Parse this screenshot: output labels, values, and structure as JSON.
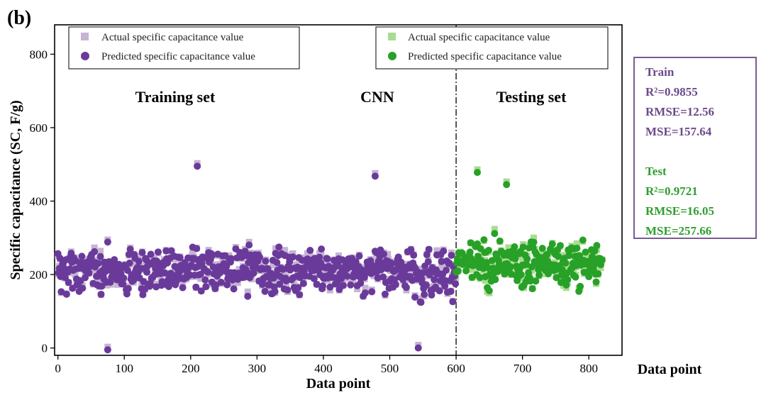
{
  "panel_label": "(b)",
  "colors": {
    "train_actual": "#c6b4d4",
    "train_pred": "#6a3a9a",
    "test_actual": "#a9dc93",
    "test_pred": "#27a127",
    "axis": "#000000"
  },
  "legend_left": [
    {
      "label": "Actual specific capacitance value",
      "marker": "square",
      "color": "#c6b4d4"
    },
    {
      "label": "Predicted specific capacitance value",
      "marker": "circle",
      "color": "#6a3a9a"
    }
  ],
  "legend_right": [
    {
      "label": "Actual specific capacitance value",
      "marker": "square",
      "color": "#a9dc93"
    },
    {
      "label": "Predicted specific capacitance value",
      "marker": "circle",
      "color": "#27a127"
    }
  ],
  "annotations": {
    "training": "Training set",
    "model": "CNN",
    "testing": "Testing set"
  },
  "second_xlabel": "Data point",
  "metrics": {
    "train_title": "Train",
    "train_r2": "R²=0.9855",
    "train_rmse": "RMSE=12.56",
    "train_mse": "MSE=157.64",
    "test_title": "Test",
    "test_r2": "R²=0.9721",
    "test_rmse": "RMSE=16.05",
    "test_mse": "MSE=257.66"
  },
  "chart_data": {
    "type": "scatter",
    "xlabel": "Data point",
    "ylabel": "Specific capacitance (SC, F/g)",
    "xlim": [
      -5,
      850
    ],
    "ylim": [
      -20,
      880
    ],
    "xticks": [
      0,
      100,
      200,
      300,
      400,
      500,
      600,
      700,
      800
    ],
    "yticks": [
      0,
      200,
      400,
      600,
      800
    ],
    "split_x": 600,
    "grid": false,
    "legend_position": "top",
    "train_range": [
      0,
      599
    ],
    "test_range": [
      600,
      820
    ],
    "series": [
      {
        "name": "Actual specific capacitance value",
        "set": "train",
        "marker": "square"
      },
      {
        "name": "Predicted specific capacitance value",
        "set": "train",
        "marker": "circle"
      },
      {
        "name": "Actual specific capacitance value",
        "set": "test",
        "marker": "square"
      },
      {
        "name": "Predicted specific capacitance value",
        "set": "test",
        "marker": "circle"
      }
    ],
    "highlight_points": [
      {
        "x": 210,
        "y": 495
      },
      {
        "x": 478,
        "y": 468
      },
      {
        "x": 632,
        "y": 478
      },
      {
        "x": 676,
        "y": 445
      },
      {
        "x": 75,
        "y": -5
      },
      {
        "x": 543,
        "y": 0
      }
    ],
    "train_mean": 210,
    "test_mean": 230,
    "spread": 70
  }
}
